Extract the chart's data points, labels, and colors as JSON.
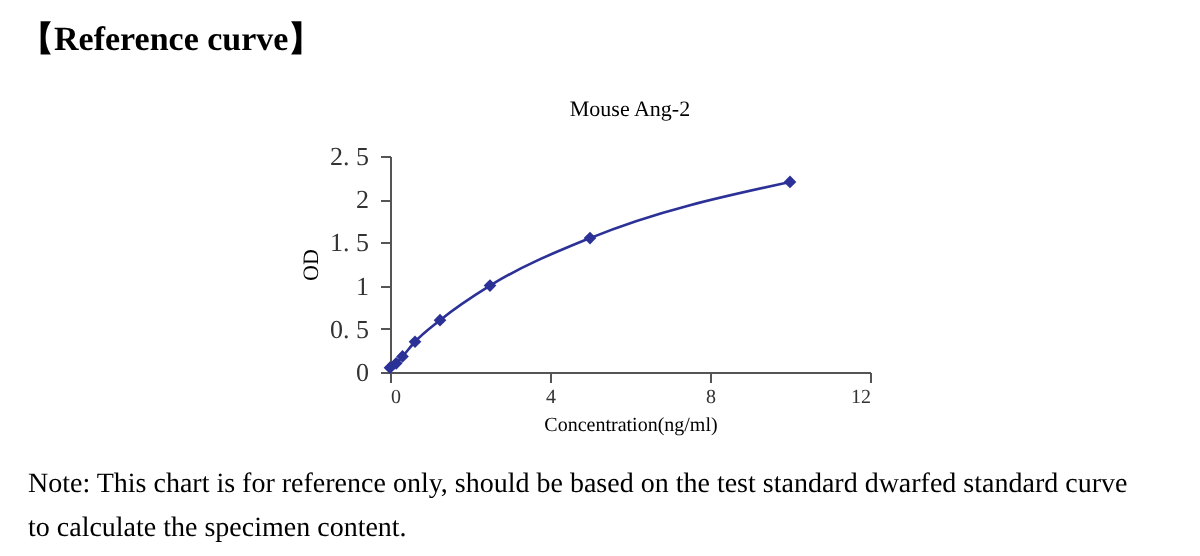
{
  "chart_data": {
    "type": "line",
    "title": "【Reference curve】",
    "subtitle": "Mouse Ang-2",
    "xlabel": "Concentration(ng/ml)",
    "ylabel": "OD",
    "x": [
      0,
      0.156,
      0.3125,
      0.625,
      1.25,
      2.5,
      5,
      10
    ],
    "series": [
      {
        "color": "#2b3196",
        "values": [
          0.05,
          0.1,
          0.18,
          0.35,
          0.6,
          1.0,
          1.55,
          2.2
        ]
      }
    ],
    "xlim": [
      0,
      12
    ],
    "xticks": [
      0,
      4,
      8,
      12
    ],
    "ylim": [
      0,
      2.5
    ],
    "yticks": [
      0,
      {
        "value": 0.5,
        "label": "0. 5"
      },
      1,
      {
        "value": 1.5,
        "label": "1. 5"
      },
      2,
      {
        "value": 2.5,
        "label": "2. 5"
      }
    ],
    "marker": "diamond",
    "line_style": "solid",
    "grid": false,
    "annotations": [
      "Note: This chart is for reference only, should be based on the test standard dwarfed standard curve",
      "to calculate the specimen content."
    ]
  }
}
